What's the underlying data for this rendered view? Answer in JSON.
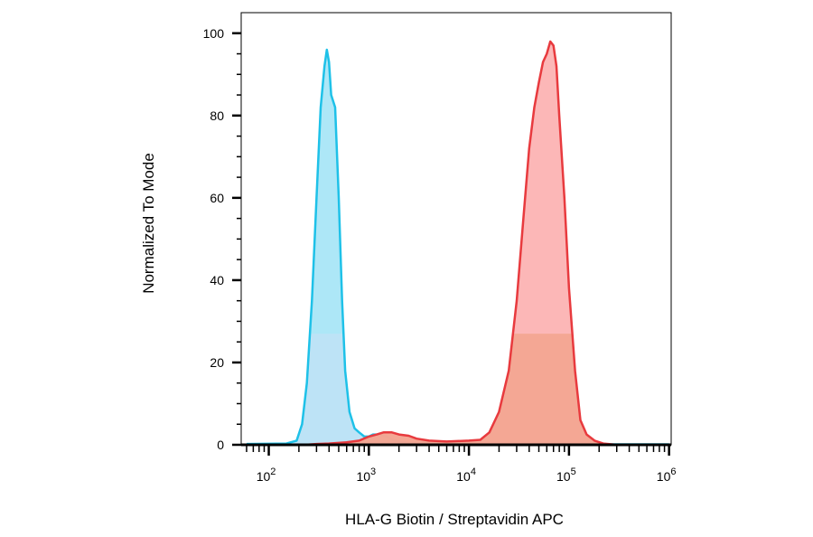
{
  "chart_data": {
    "type": "area",
    "title": "",
    "xlabel": "HLA-G Biotin / Streptavidin APC",
    "ylabel": "Normalized To Mode",
    "x_scale": "log",
    "xlim": [
      53,
      1050000
    ],
    "ylim": [
      0,
      105
    ],
    "x_ticks": [
      {
        "base": "10",
        "exp": "2",
        "value": 100
      },
      {
        "base": "10",
        "exp": "3",
        "value": 1000
      },
      {
        "base": "10",
        "exp": "4",
        "value": 10000
      },
      {
        "base": "10",
        "exp": "5",
        "value": 100000
      },
      {
        "base": "10",
        "exp": "6",
        "value": 1000000
      }
    ],
    "y_ticks": [
      {
        "label": "0",
        "value": 0
      },
      {
        "label": "20",
        "value": 20
      },
      {
        "label": "40",
        "value": 40
      },
      {
        "label": "60",
        "value": 60
      },
      {
        "label": "80",
        "value": 80
      },
      {
        "label": "100",
        "value": 100
      }
    ],
    "grid": false,
    "legend": "none",
    "series": [
      {
        "color": "#1ec1e8",
        "fill": "#9fe3f6",
        "fill_lower": "#bfe2f6",
        "points": [
          [
            60,
            0.2
          ],
          [
            150,
            0.3
          ],
          [
            190,
            1
          ],
          [
            215,
            5
          ],
          [
            240,
            15
          ],
          [
            270,
            35
          ],
          [
            300,
            60
          ],
          [
            330,
            82
          ],
          [
            360,
            92
          ],
          [
            380,
            96
          ],
          [
            400,
            93
          ],
          [
            420,
            85
          ],
          [
            460,
            82
          ],
          [
            500,
            60
          ],
          [
            540,
            35
          ],
          [
            580,
            18
          ],
          [
            640,
            8
          ],
          [
            720,
            4
          ],
          [
            800,
            3
          ],
          [
            900,
            2
          ],
          [
            1000,
            2
          ],
          [
            1100,
            2.5
          ],
          [
            1300,
            2.5
          ],
          [
            1500,
            2
          ],
          [
            1800,
            1
          ],
          [
            2500,
            0.4
          ],
          [
            4000,
            0.2
          ],
          [
            10000,
            0.1
          ],
          [
            100000,
            0.1
          ],
          [
            1000000,
            0.1
          ]
        ]
      },
      {
        "color": "#e83a3e",
        "fill": "#fbaaaa",
        "fill_lower": "#f2a48e",
        "points": [
          [
            230,
            0
          ],
          [
            300,
            0.2
          ],
          [
            400,
            0.3
          ],
          [
            600,
            0.6
          ],
          [
            800,
            1
          ],
          [
            1000,
            2
          ],
          [
            1200,
            2.5
          ],
          [
            1400,
            3
          ],
          [
            1700,
            3
          ],
          [
            2000,
            2.5
          ],
          [
            2500,
            2.2
          ],
          [
            3000,
            1.5
          ],
          [
            4000,
            1
          ],
          [
            6000,
            0.8
          ],
          [
            10000,
            1
          ],
          [
            13000,
            1.2
          ],
          [
            16000,
            3
          ],
          [
            20000,
            8
          ],
          [
            25000,
            18
          ],
          [
            30000,
            35
          ],
          [
            35000,
            55
          ],
          [
            40000,
            72
          ],
          [
            45000,
            82
          ],
          [
            50000,
            88
          ],
          [
            55000,
            93
          ],
          [
            60000,
            95
          ],
          [
            65000,
            98
          ],
          [
            70000,
            97
          ],
          [
            75000,
            92
          ],
          [
            80000,
            80
          ],
          [
            90000,
            60
          ],
          [
            100000,
            38
          ],
          [
            115000,
            18
          ],
          [
            130000,
            6
          ],
          [
            150000,
            2.5
          ],
          [
            180000,
            1
          ],
          [
            220000,
            0.3
          ],
          [
            300000,
            0
          ]
        ]
      }
    ]
  }
}
